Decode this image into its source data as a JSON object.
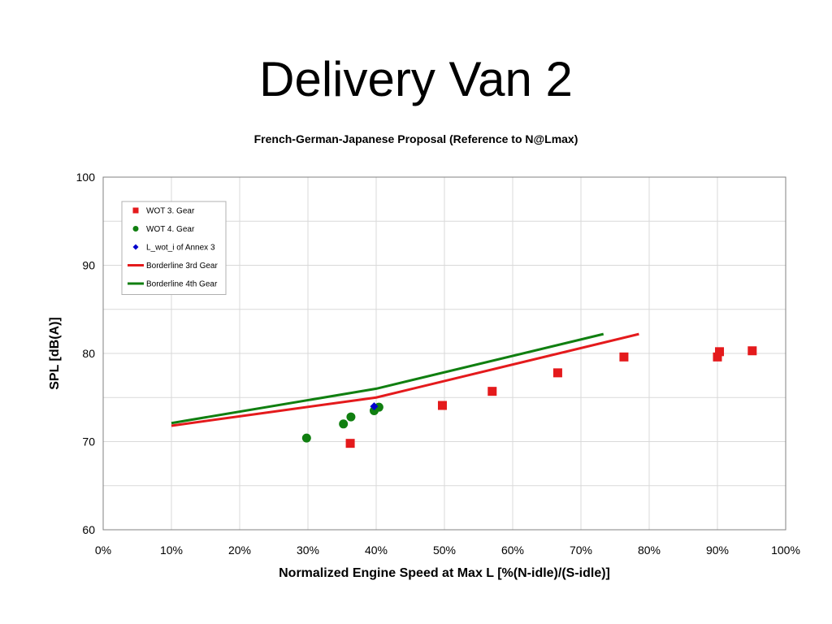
{
  "slide": {
    "title": "Delivery Van 2"
  },
  "colors": {
    "gear3": "#e41a1c",
    "gear4": "#107f10",
    "annex": "#0000cc",
    "grid": "#d9d9d9"
  },
  "chart_data": {
    "type": "scatter",
    "title": "French-German-Japanese Proposal (Reference to N@Lmax)",
    "xlabel": "Normalized Engine Speed at Max L [%(N-idle)/(S-idle)]",
    "ylabel": "SPL [dB(A)]",
    "xlim": [
      0,
      100
    ],
    "ylim": [
      60,
      100
    ],
    "x_ticks": [
      0,
      10,
      20,
      30,
      40,
      50,
      60,
      70,
      80,
      90,
      100
    ],
    "x_tick_labels": [
      "0%",
      "10%",
      "20%",
      "30%",
      "40%",
      "50%",
      "60%",
      "70%",
      "80%",
      "90%",
      "100%"
    ],
    "y_ticks": [
      60,
      70,
      80,
      90,
      100
    ],
    "y_tick_labels": [
      "60",
      "70",
      "80",
      "90",
      "100"
    ],
    "y_minor_grid": [
      65,
      75,
      85,
      95
    ],
    "grid": true,
    "legend_position": "top-left",
    "series": [
      {
        "name": "WOT 3. Gear",
        "kind": "scatter",
        "marker": "square",
        "color": "#e41a1c",
        "points": [
          [
            36.2,
            69.8
          ],
          [
            49.7,
            74.1
          ],
          [
            57.0,
            75.7
          ],
          [
            66.6,
            77.8
          ],
          [
            76.3,
            79.6
          ],
          [
            90.0,
            79.6
          ],
          [
            90.3,
            80.2
          ],
          [
            95.1,
            80.3
          ]
        ]
      },
      {
        "name": "WOT 4. Gear",
        "kind": "scatter",
        "marker": "circle",
        "color": "#107f10",
        "points": [
          [
            29.8,
            70.4
          ],
          [
            35.2,
            72.0
          ],
          [
            36.3,
            72.8
          ],
          [
            39.7,
            73.5
          ],
          [
            40.4,
            73.9
          ]
        ]
      },
      {
        "name": "L_wot_i of Annex 3",
        "kind": "scatter",
        "marker": "diamond",
        "color": "#0000cc",
        "points": [
          [
            39.7,
            74.0
          ]
        ]
      },
      {
        "name": "Borderline 3rd Gear",
        "kind": "line",
        "color": "#e41a1c",
        "points": [
          [
            10.0,
            71.8
          ],
          [
            40.0,
            75.0
          ],
          [
            78.5,
            82.2
          ]
        ]
      },
      {
        "name": "Borderline 4th Gear",
        "kind": "line",
        "color": "#107f10",
        "points": [
          [
            10.0,
            72.1
          ],
          [
            40.0,
            76.0
          ],
          [
            73.3,
            82.2
          ]
        ]
      }
    ]
  }
}
